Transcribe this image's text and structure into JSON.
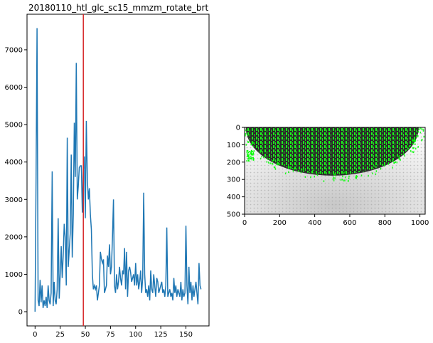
{
  "chart_data": [
    {
      "type": "line",
      "title": "20180110_htl_glc_sc15_mmzm_rotate_brt",
      "xlabel": "",
      "ylabel": "",
      "xlim": [
        -8,
        173
      ],
      "ylim": [
        -380,
        7950
      ],
      "xticks": [
        0,
        25,
        50,
        75,
        100,
        125,
        150
      ],
      "yticks": [
        0,
        1000,
        2000,
        3000,
        4000,
        5000,
        6000,
        7000
      ],
      "line_color": "#1f77b4",
      "marker_line": {
        "x": 48,
        "color": "#d62728"
      },
      "series": [
        {
          "name": "",
          "x": [
            0,
            1,
            2,
            3,
            4,
            5,
            6,
            7,
            8,
            9,
            10,
            11,
            12,
            13,
            14,
            15,
            16,
            17,
            18,
            19,
            20,
            21,
            22,
            23,
            24,
            25,
            26,
            27,
            28,
            29,
            30,
            31,
            32,
            33,
            34,
            35,
            36,
            37,
            38,
            39,
            40,
            41,
            42,
            43,
            44,
            45,
            46,
            47,
            48,
            49,
            50,
            51,
            52,
            53,
            54,
            55,
            56,
            57,
            58,
            59,
            60,
            61,
            62,
            63,
            64,
            65,
            66,
            67,
            68,
            69,
            70,
            71,
            72,
            73,
            74,
            75,
            76,
            77,
            78,
            79,
            80,
            81,
            82,
            83,
            84,
            85,
            86,
            87,
            88,
            89,
            90,
            91,
            92,
            93,
            94,
            95,
            96,
            97,
            98,
            99,
            100,
            101,
            102,
            103,
            104,
            105,
            106,
            107,
            108,
            109,
            110,
            111,
            112,
            113,
            114,
            115,
            116,
            117,
            118,
            119,
            120,
            121,
            122,
            123,
            124,
            125,
            126,
            127,
            128,
            129,
            130,
            131,
            132,
            133,
            134,
            135,
            136,
            137,
            138,
            139,
            140,
            141,
            142,
            143,
            144,
            145,
            146,
            147,
            148,
            149,
            150,
            151,
            152,
            153,
            154,
            155,
            156,
            157,
            158,
            159,
            160,
            161,
            162,
            163,
            164,
            165
          ],
          "values": [
            0,
            3500,
            7580,
            300,
            150,
            850,
            250,
            700,
            100,
            300,
            150,
            400,
            100,
            700,
            300,
            200,
            500,
            3750,
            150,
            800,
            300,
            200,
            600,
            2500,
            350,
            1000,
            1750,
            900,
            1500,
            2350,
            2000,
            700,
            4650,
            1200,
            1650,
            2100,
            4200,
            1450,
            2600,
            5050,
            3600,
            6650,
            3000,
            3350,
            3850,
            3900,
            3900,
            2650,
            3800,
            4150,
            2500,
            5100,
            3500,
            3000,
            3300,
            2600,
            2200,
            1000,
            600,
            700,
            600,
            700,
            300,
            500,
            700,
            1600,
            1400,
            1300,
            1400,
            500,
            600,
            700,
            1500,
            1200,
            1800,
            1000,
            1200,
            2000,
            3000,
            700,
            500,
            1000,
            600,
            800,
            1200,
            900,
            700,
            1100,
            1000,
            1700,
            600,
            1600,
            400,
            1100,
            1200,
            1050,
            800,
            900,
            1000,
            700,
            1300,
            700,
            1000,
            600,
            800,
            1100,
            500,
            900,
            3180,
            1000,
            500,
            600,
            400,
            700,
            300,
            1100,
            600,
            500,
            1000,
            700,
            400,
            900,
            800,
            500,
            600,
            700,
            800,
            500,
            600,
            400,
            700,
            2250,
            400,
            500,
            600,
            400,
            500,
            300,
            900,
            500,
            700,
            400,
            600,
            500,
            400,
            800,
            300,
            600,
            400,
            500,
            2300,
            700,
            200,
            1200,
            500,
            800,
            300,
            700,
            400,
            600,
            800,
            500,
            200,
            1300,
            700,
            600
          ]
        }
      ]
    },
    {
      "type": "heatmap",
      "title": "",
      "xlabel": "",
      "ylabel": "",
      "xlim": [
        0,
        1030
      ],
      "ylim": [
        500,
        0
      ],
      "xticks": [
        0,
        200,
        400,
        600,
        800,
        1000
      ],
      "yticks": [
        0,
        100,
        200,
        300,
        400,
        500
      ],
      "overlay_color": "#00ff00",
      "ellipse": {
        "cx": 500,
        "cy": 0,
        "rx": 490,
        "ry": 275,
        "color": "#333333"
      }
    }
  ]
}
